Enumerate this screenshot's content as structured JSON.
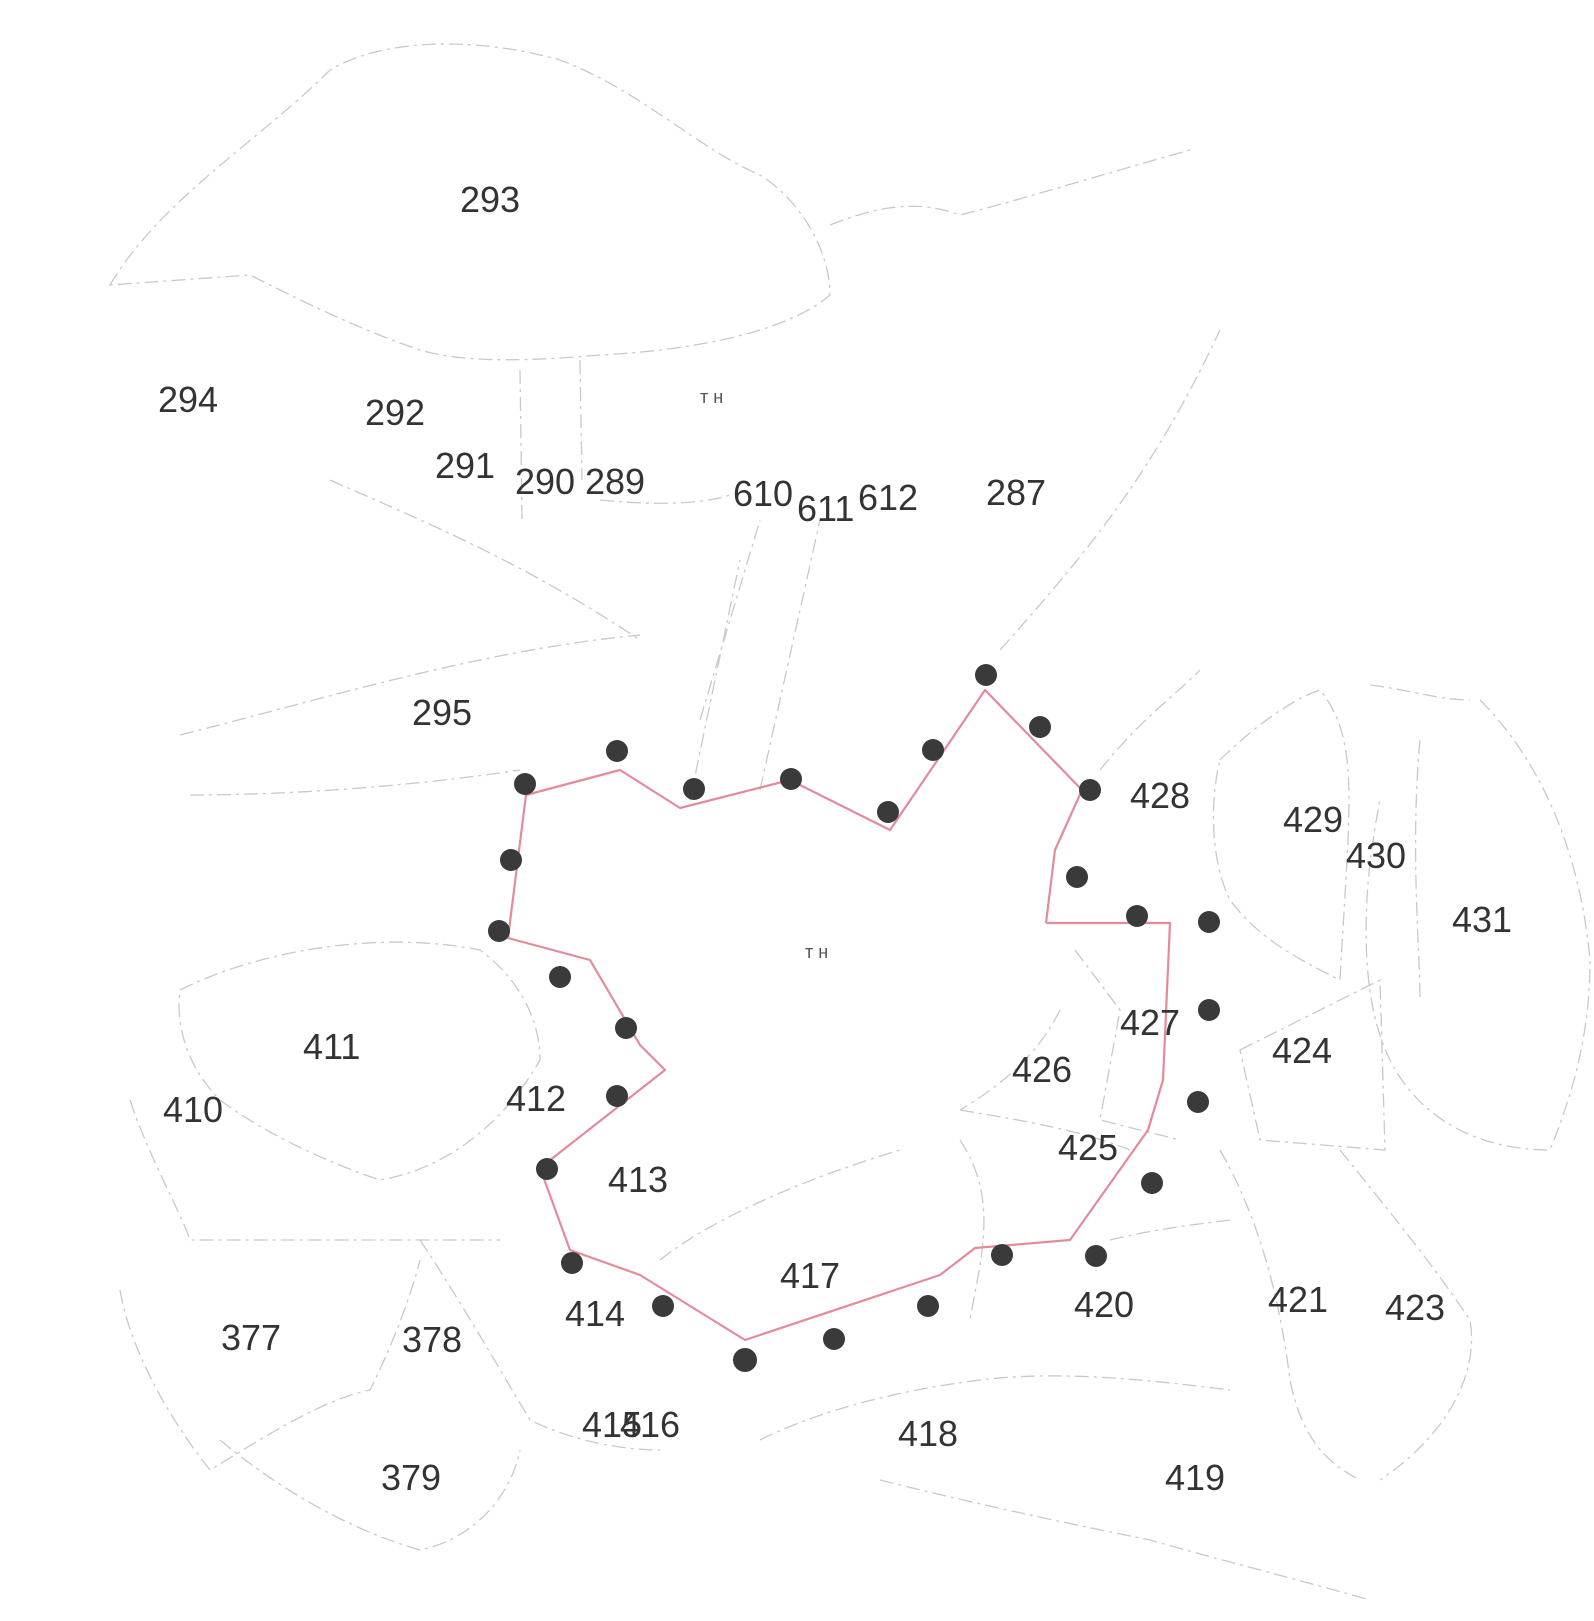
{
  "colors": {
    "background": "#ffffff",
    "parcel_lines": "#c9c9c9",
    "selected_boundary": "#e58a9a",
    "vertex": "#3a3a3a",
    "label": "#333333"
  },
  "parcels": [
    {
      "id": "293",
      "label": "293"
    },
    {
      "id": "294",
      "label": "294"
    },
    {
      "id": "292",
      "label": "292"
    },
    {
      "id": "291",
      "label": "291"
    },
    {
      "id": "290",
      "label": "290"
    },
    {
      "id": "289",
      "label": "289"
    },
    {
      "id": "610",
      "label": "610"
    },
    {
      "id": "611",
      "label": "611"
    },
    {
      "id": "612",
      "label": "612"
    },
    {
      "id": "287",
      "label": "287"
    },
    {
      "id": "295",
      "label": "295"
    },
    {
      "id": "428",
      "label": "428"
    },
    {
      "id": "429",
      "label": "429"
    },
    {
      "id": "430",
      "label": "430"
    },
    {
      "id": "431",
      "label": "431"
    },
    {
      "id": "427",
      "label": "427"
    },
    {
      "id": "424",
      "label": "424"
    },
    {
      "id": "426",
      "label": "426"
    },
    {
      "id": "425",
      "label": "425"
    },
    {
      "id": "411",
      "label": "411"
    },
    {
      "id": "410",
      "label": "410"
    },
    {
      "id": "412",
      "label": "412"
    },
    {
      "id": "413",
      "label": "413"
    },
    {
      "id": "417",
      "label": "417"
    },
    {
      "id": "420",
      "label": "420"
    },
    {
      "id": "421",
      "label": "421"
    },
    {
      "id": "423",
      "label": "423"
    },
    {
      "id": "377",
      "label": "377"
    },
    {
      "id": "378",
      "label": "378"
    },
    {
      "id": "414",
      "label": "414"
    },
    {
      "id": "415",
      "label": "415"
    },
    {
      "id": "416",
      "label": "416"
    },
    {
      "id": "418",
      "label": "418"
    },
    {
      "id": "419",
      "label": "419"
    },
    {
      "id": "379",
      "label": "379"
    }
  ],
  "markers": [
    {
      "id": "top",
      "label": "т н"
    },
    {
      "id": "center",
      "label": "т н"
    }
  ]
}
